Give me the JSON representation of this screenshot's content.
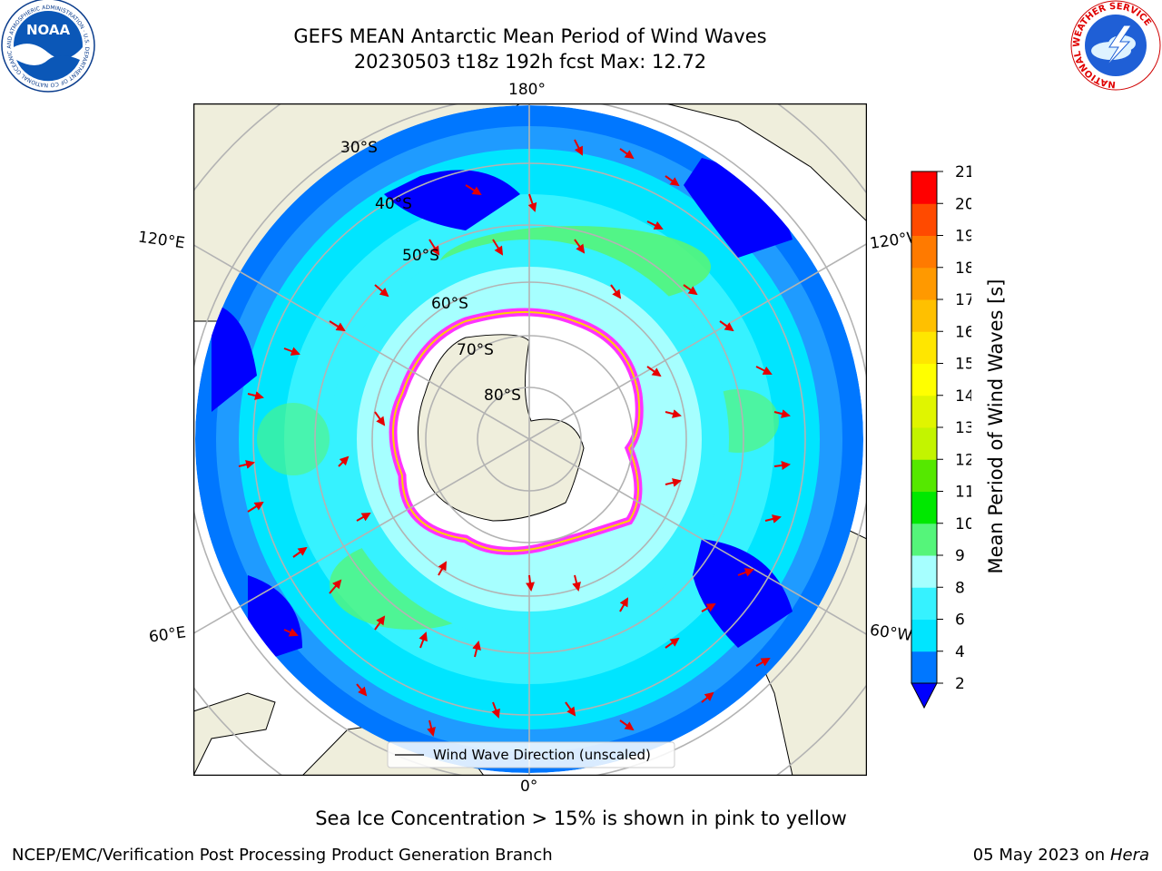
{
  "header": {
    "title_line1": "GEFS MEAN Antarctic Mean Period of Wind Waves",
    "title_line2": "20230503 t18z 192h fcst   Max: 12.72",
    "left_logo": "NOAA",
    "left_logo_ring_text": "NATIONAL OCEANIC AND ATMOSPHERIC ADMINISTRATION · U.S. DEPARTMENT OF COMMERCE",
    "right_logo_ring_text": "NATIONAL WEATHER SERVICE"
  },
  "map": {
    "projection": "south-polar-stereographic",
    "longitude_labels": {
      "top": "180°",
      "upper_left": "120°E",
      "upper_right": "120°W",
      "lower_left": "60°E",
      "lower_right": "60°W",
      "bottom": "0°"
    },
    "latitude_labels": [
      "30°S",
      "40°S",
      "50°S",
      "60°S",
      "70°S",
      "80°S"
    ],
    "legend_label": "Wind Wave Direction (unscaled)",
    "colors": {
      "land": "#efeedc",
      "ice_edge": "#ff33ff",
      "arrows": "#e60000",
      "grid": "#b3b3b3"
    }
  },
  "colorbar": {
    "label": "Mean Period of Wind Waves [s]",
    "ticks": [
      "2",
      "4",
      "6",
      "8",
      "9",
      "10",
      "11",
      "12",
      "13",
      "14",
      "15",
      "16",
      "17",
      "18",
      "19",
      "20",
      "21"
    ],
    "bin_colors": [
      "#0077ff",
      "#00e5ff",
      "#36f2ff",
      "#a6ffff",
      "#55f57a",
      "#00e800",
      "#55e800",
      "#c3f400",
      "#e0f500",
      "#ffff00",
      "#ffe600",
      "#ffc000",
      "#ff9900",
      "#ff7a00",
      "#ff4a00",
      "#ff0000"
    ],
    "extend_color": "#0000ff"
  },
  "annotation": "Sea Ice Concentration > 15% is shown in pink to yellow",
  "footer": {
    "left": "NCEP/EMC/Verification Post Processing Product Generation Branch",
    "right_prefix": "05 May 2023 on",
    "right_italic": "Hera"
  }
}
